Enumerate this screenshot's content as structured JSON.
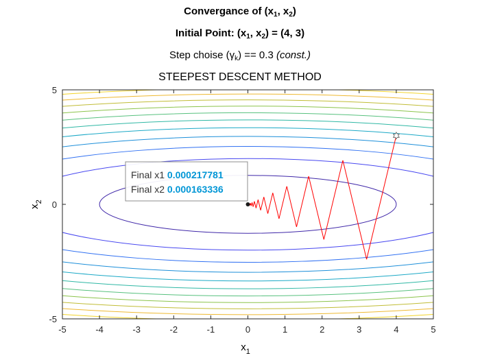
{
  "titles": {
    "line1": {
      "prefix": "Convergance of (x",
      "s1": "1",
      "mid": ", x",
      "s2": "2",
      "suffix": ")"
    },
    "line2": {
      "prefix": "Initial Point: (x",
      "s1": "1",
      "mid": ", x",
      "s2": "2",
      "suffix": ") = (4, 3)"
    },
    "line3": {
      "prefix": "Step choise (",
      "greek": "γ",
      "sub": "k",
      "suffix": ") == 0.3  ",
      "note": "(const.)"
    },
    "line4": "STEEPEST DESCENT METHOD"
  },
  "axes": {
    "xlabel": {
      "base": "x",
      "sub": "1"
    },
    "ylabel": {
      "base": "x",
      "sub": "2"
    }
  },
  "datatip": {
    "label1": "Final x1 ",
    "value1": "0.000217781",
    "label2": "Final x2 ",
    "value2": "0.000163336",
    "value_color": "#0096d6"
  },
  "chart_data": {
    "type": "line",
    "xlim": [
      -5,
      5
    ],
    "ylim": [
      -5,
      5
    ],
    "xticks": [
      -5,
      -4,
      -3,
      -2,
      -1,
      0,
      1,
      2,
      3,
      4,
      5
    ],
    "yticks": [
      -5,
      0,
      5
    ],
    "grid": false,
    "contour": {
      "function": "x1^2 + 10*x2^2",
      "levels": [
        16,
        40,
        64,
        88,
        112,
        136,
        160,
        184,
        208,
        232,
        256
      ],
      "colormap": [
        "#3e26a8",
        "#4646f0",
        "#2e6ff2",
        "#1b8ed9",
        "#1aa8c6",
        "#2eb7a4",
        "#56c07d",
        "#8bc34a",
        "#c0bc35",
        "#eeb830",
        "#f2d327"
      ]
    },
    "series": [
      {
        "x": [
          4,
          3.2,
          2.56,
          2.048,
          1.638,
          1.311,
          1.049,
          0.839,
          0.671,
          0.537,
          0.43,
          0.344,
          0.275,
          0.22,
          0.176,
          0.141,
          0.113,
          0.09,
          0.072,
          0.058,
          0.046,
          0.037,
          0.03,
          0.024,
          0.019,
          0.015,
          0.012,
          0.0002
        ],
        "y": [
          3,
          -2.4,
          1.92,
          -1.536,
          1.229,
          -0.983,
          0.786,
          -0.629,
          0.503,
          -0.403,
          0.322,
          -0.258,
          0.206,
          -0.165,
          0.132,
          -0.106,
          0.084,
          -0.068,
          0.054,
          -0.043,
          0.035,
          -0.028,
          0.022,
          -0.018,
          0.014,
          -0.011,
          0.009,
          0.0002
        ],
        "color": "#ff0000"
      }
    ],
    "start_point": {
      "x": 4,
      "y": 3,
      "marker": "hexagram"
    },
    "final_point": {
      "x": 0.000217781,
      "y": 0.000163336
    }
  }
}
